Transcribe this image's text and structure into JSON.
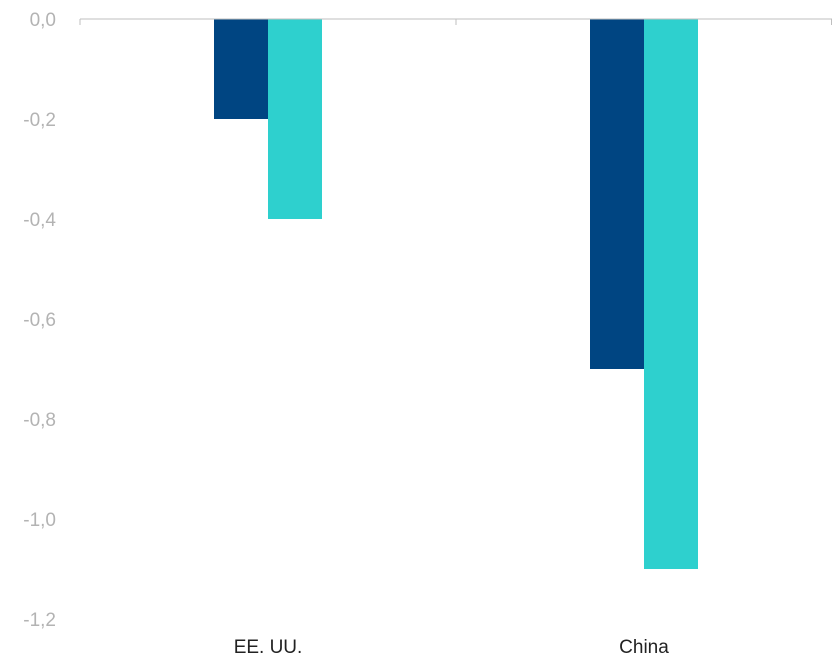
{
  "chart_data": {
    "type": "bar",
    "title": "",
    "xlabel": "",
    "ylabel": "",
    "categories": [
      "EE. UU.",
      "China"
    ],
    "series": [
      {
        "values": [
          -0.2,
          -0.7
        ],
        "color": "#004582"
      },
      {
        "values": [
          -0.4,
          -1.1
        ],
        "color": "#2ed0ce"
      }
    ],
    "ylim": [
      -1.2,
      0.0
    ],
    "yticks": [
      0.0,
      -0.2,
      -0.4,
      -0.6,
      -0.8,
      -1.0,
      -1.2
    ],
    "ytick_labels": [
      "0,0",
      "-0,2",
      "-0,4",
      "-0,6",
      "-0,8",
      "-1,0",
      "-1,2"
    ],
    "grid": false,
    "legend": "none"
  }
}
